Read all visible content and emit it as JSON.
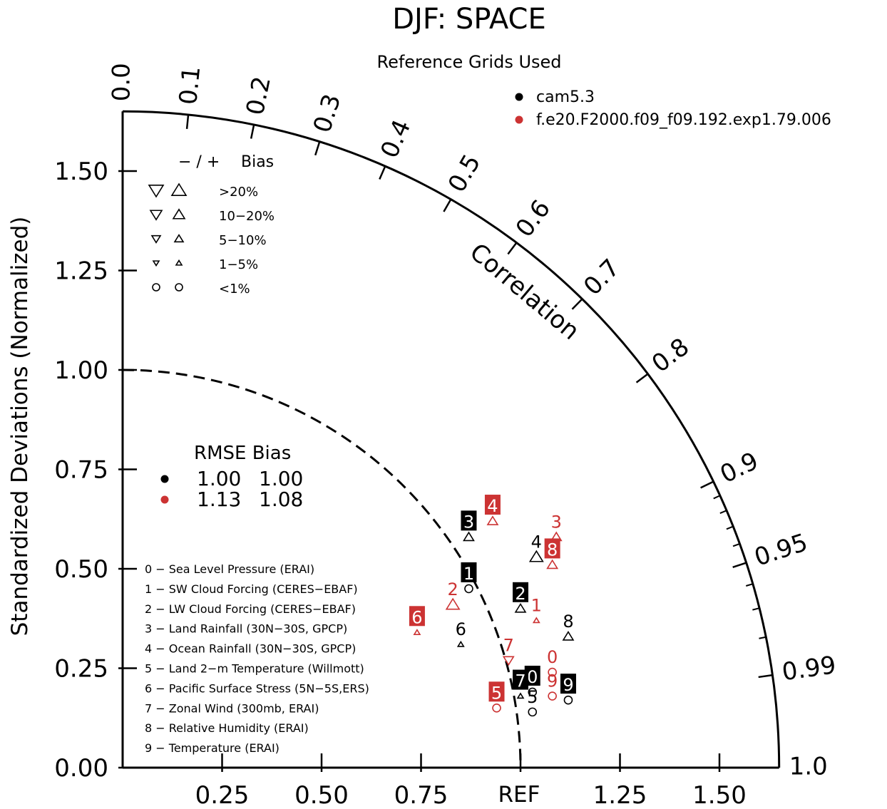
{
  "chart_data": {
    "type": "scatter",
    "title": "DJF: SPACE",
    "subtitle": "Reference Grids Used",
    "ylabel": "Standardized Deviations (Normalized)",
    "correlation_label": "Correlation",
    "ref_label": "REF",
    "ylim": [
      0,
      1.65
    ],
    "y_ticks": [
      "0.00",
      "0.25",
      "0.50",
      "0.75",
      "1.00",
      "1.25",
      "1.50"
    ],
    "x_ticks": [
      "0.25",
      "0.50",
      "0.75",
      "1.25",
      "1.50"
    ],
    "corr_ticks": [
      "0.0",
      "0.1",
      "0.2",
      "0.3",
      "0.4",
      "0.5",
      "0.6",
      "0.7",
      "0.8",
      "0.9",
      "0.95",
      "0.99",
      "1.0"
    ],
    "legend": {
      "placement": "top-right",
      "entries": [
        {
          "name": "cam5.3",
          "color": "#000000"
        },
        {
          "name": "f.e20.F2000.f09_f09.192.exp1.79.006",
          "color": "#cc3333"
        }
      ]
    },
    "bias_legend": {
      "header_sign": "− / +",
      "header_label": "Bias",
      "rows": [
        "&gt;20%",
        "10−20%",
        "5−10%",
        "1−5%",
        "&lt;1%"
      ]
    },
    "rmse_table": {
      "header": "RMSE Bias",
      "rows": [
        {
          "rmse": "1.00",
          "bias": "1.00",
          "color": "#000000"
        },
        {
          "rmse": "1.13",
          "bias": "1.08",
          "color": "#cc3333"
        }
      ]
    },
    "variables": [
      "0 − Sea Level Pressure (ERAI)",
      "1 − SW Cloud Forcing (CERES−EBAF)",
      "2 − LW Cloud Forcing (CERES−EBAF)",
      "3 − Land Rainfall (30N−30S, GPCP)",
      "4 − Ocean Rainfall (30N−30S, GPCP)",
      "5 − Land 2−m Temperature (Willmott)",
      "6 − Pacific Surface Stress (5N−5S,ERS)",
      "7 − Zonal Wind (300mb, ERAI)",
      "8 − Relative Humidity (ERAI)",
      "9 − Temperature (ERAI)"
    ],
    "series": [
      {
        "name": "cam5.3",
        "color": "#000000",
        "points": [
          {
            "id": "0",
            "x": 1.03,
            "y": 0.19,
            "marker": "circle",
            "size": 2,
            "boxed": true
          },
          {
            "id": "1",
            "x": 0.87,
            "y": 0.45,
            "marker": "circle",
            "size": 2,
            "boxed": true
          },
          {
            "id": "2",
            "x": 1.0,
            "y": 0.4,
            "marker": "up",
            "size": 2,
            "boxed": true
          },
          {
            "id": "3",
            "x": 0.87,
            "y": 0.58,
            "marker": "up",
            "size": 2,
            "boxed": true
          },
          {
            "id": "4",
            "x": 1.04,
            "y": 0.53,
            "marker": "up",
            "size": 3,
            "boxed": false
          },
          {
            "id": "5",
            "x": 1.03,
            "y": 0.14,
            "marker": "circle",
            "size": 2,
            "boxed": false
          },
          {
            "id": "6",
            "x": 0.85,
            "y": 0.31,
            "marker": "up",
            "size": 1,
            "boxed": false
          },
          {
            "id": "7",
            "x": 1.0,
            "y": 0.18,
            "marker": "up",
            "size": 1,
            "boxed": true
          },
          {
            "id": "8",
            "x": 1.12,
            "y": 0.33,
            "marker": "up",
            "size": 2,
            "boxed": false
          },
          {
            "id": "9",
            "x": 1.12,
            "y": 0.17,
            "marker": "circle",
            "size": 2,
            "boxed": true
          }
        ]
      },
      {
        "name": "f.e20.F2000.f09_f09.192.exp1.79.006",
        "color": "#cc3333",
        "points": [
          {
            "id": "0",
            "x": 1.08,
            "y": 0.24,
            "marker": "circle",
            "size": 2,
            "boxed": false
          },
          {
            "id": "1",
            "x": 1.04,
            "y": 0.37,
            "marker": "up",
            "size": 1,
            "boxed": false
          },
          {
            "id": "2",
            "x": 0.83,
            "y": 0.41,
            "marker": "up",
            "size": 3,
            "boxed": false
          },
          {
            "id": "3",
            "x": 1.09,
            "y": 0.58,
            "marker": "up",
            "size": 2,
            "boxed": false
          },
          {
            "id": "4",
            "x": 0.93,
            "y": 0.62,
            "marker": "up",
            "size": 2,
            "boxed": true
          },
          {
            "id": "5",
            "x": 0.94,
            "y": 0.15,
            "marker": "circle",
            "size": 2,
            "boxed": true
          },
          {
            "id": "6",
            "x": 0.74,
            "y": 0.34,
            "marker": "up",
            "size": 1,
            "boxed": true
          },
          {
            "id": "7",
            "x": 0.97,
            "y": 0.27,
            "marker": "down",
            "size": 2,
            "boxed": false
          },
          {
            "id": "8",
            "x": 1.08,
            "y": 0.51,
            "marker": "up",
            "size": 2,
            "boxed": true
          },
          {
            "id": "9",
            "x": 1.08,
            "y": 0.18,
            "marker": "circle",
            "size": 2,
            "boxed": false
          }
        ]
      }
    ]
  }
}
